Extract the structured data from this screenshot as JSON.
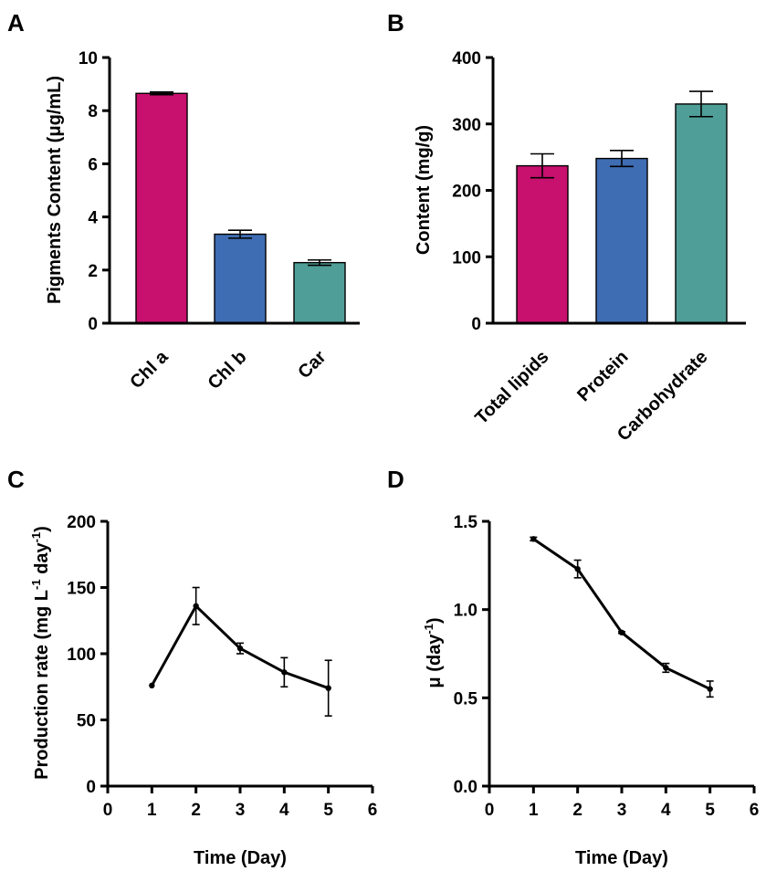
{
  "chart_data": [
    {
      "panel": "A",
      "type": "bar",
      "categories": [
        "Chl a",
        "Chl b",
        "Car"
      ],
      "values": [
        8.65,
        3.35,
        2.28
      ],
      "errors": [
        0.05,
        0.15,
        0.1
      ],
      "colors": [
        "#c8106e",
        "#3f6db3",
        "#4f9e97"
      ],
      "ylabel": "Pigments Content (μg/mL)",
      "ylim": [
        0,
        10
      ],
      "yticks": [
        "0",
        "2",
        "4",
        "6",
        "8",
        "10"
      ]
    },
    {
      "panel": "B",
      "type": "bar",
      "categories": [
        "Total lipids",
        "Protein",
        "Carbohydrate"
      ],
      "values": [
        237,
        248,
        330
      ],
      "errors": [
        18,
        12,
        19
      ],
      "colors": [
        "#c8106e",
        "#3f6db3",
        "#4f9e97"
      ],
      "ylabel": "Content (mg/g)",
      "ylim": [
        0,
        400
      ],
      "yticks": [
        "0",
        "100",
        "200",
        "300",
        "400"
      ]
    },
    {
      "panel": "C",
      "type": "line",
      "x": [
        1,
        2,
        3,
        4,
        5
      ],
      "y": [
        76,
        136,
        104,
        86,
        74
      ],
      "errors": [
        0,
        14,
        4,
        11,
        21
      ],
      "xlabel": "Time (Day)",
      "ylabel_main": "Production rate (mg L",
      "ylabel_sup1": "-1",
      "ylabel_mid": " day",
      "ylabel_sup2": "-1",
      "ylabel_end": ")",
      "xlim": [
        0,
        6
      ],
      "ylim": [
        0,
        200
      ],
      "xticks": [
        "0",
        "1",
        "2",
        "3",
        "4",
        "5",
        "6"
      ],
      "yticks": [
        "0",
        "50",
        "100",
        "150",
        "200"
      ]
    },
    {
      "panel": "D",
      "type": "line",
      "x": [
        1,
        2,
        3,
        4,
        5
      ],
      "y": [
        1.4,
        1.23,
        0.87,
        0.67,
        0.55
      ],
      "errors": [
        0.01,
        0.05,
        0.005,
        0.025,
        0.045
      ],
      "xlabel": "Time (Day)",
      "ylabel_main": "μ (day",
      "ylabel_sup1": "-1",
      "ylabel_end": ")",
      "xlim": [
        0,
        6
      ],
      "ylim": [
        0,
        1.5
      ],
      "xticks": [
        "0",
        "1",
        "2",
        "3",
        "4",
        "5",
        "6"
      ],
      "yticks": [
        "0.0",
        "0.5",
        "1.0",
        "1.5"
      ]
    }
  ]
}
